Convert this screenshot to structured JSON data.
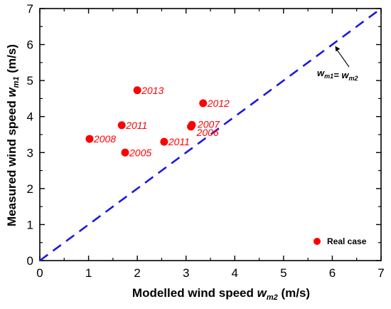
{
  "chart_data": {
    "type": "scatter",
    "title": "",
    "xlabel": {
      "main": "Modelled wind speed ",
      "var": "w",
      "sub": "m2",
      "unit": " (m/s)"
    },
    "ylabel": {
      "main": "Measured wind speed ",
      "var": "w",
      "sub": "m1",
      "unit": "  (m/s)"
    },
    "xlim": [
      0,
      7
    ],
    "ylim": [
      0,
      7
    ],
    "xticks": [
      0,
      1,
      2,
      3,
      4,
      5,
      6,
      7
    ],
    "yticks": [
      0,
      1,
      2,
      3,
      4,
      5,
      6,
      7
    ],
    "grid": false,
    "legend_position": "bottom-right",
    "colors": {
      "points": "#ff0000",
      "reference_line": "#1a1adf",
      "axes": "#000000"
    },
    "series": [
      {
        "name": "Real case",
        "points": [
          {
            "x": 2.0,
            "y": 4.73,
            "label": "2013"
          },
          {
            "x": 3.35,
            "y": 4.37,
            "label": "2012"
          },
          {
            "x": 1.68,
            "y": 3.76,
            "label": "2011"
          },
          {
            "x": 3.12,
            "y": 3.77,
            "label": "2007"
          },
          {
            "x": 3.1,
            "y": 3.72,
            "label": "2006"
          },
          {
            "x": 1.02,
            "y": 3.38,
            "label": "2008"
          },
          {
            "x": 2.55,
            "y": 3.3,
            "label": "2011"
          },
          {
            "x": 1.75,
            "y": 3.0,
            "label": "2005"
          }
        ]
      }
    ],
    "reference_line": {
      "from": [
        0,
        0
      ],
      "to": [
        7,
        7
      ],
      "style": "dashed"
    },
    "annotation": {
      "text_parts": [
        {
          "var": "w",
          "sub": "m1"
        },
        {
          "text": "= "
        },
        {
          "var": "w",
          "sub": "m2"
        }
      ],
      "points_to": [
        6.0,
        6.0
      ]
    }
  }
}
